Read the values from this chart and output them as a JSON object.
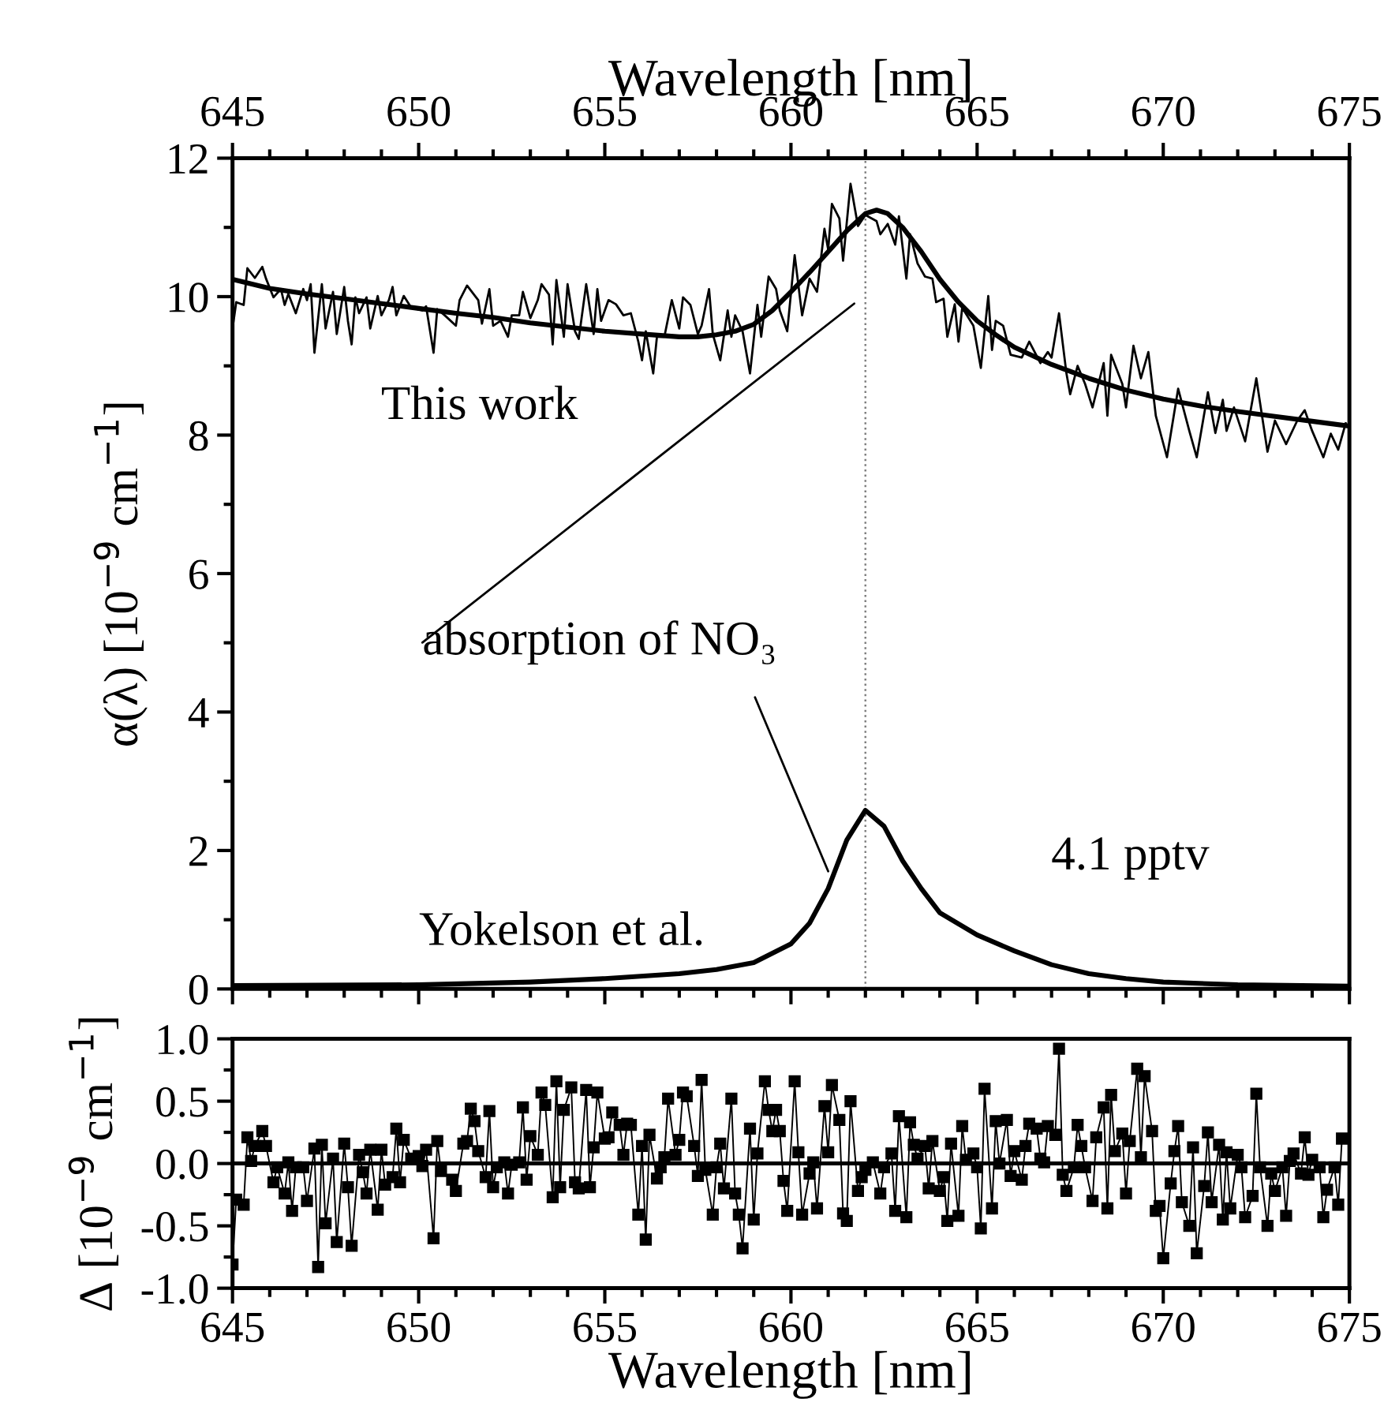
{
  "chart_data": [
    {
      "type": "line",
      "ylabel": "α(λ) [10$^{−9}$ cm$^{−1}$]",
      "xlabel": "Wavelength [nm]",
      "xlim": [
        645,
        675
      ],
      "xticks": [
        645,
        650,
        655,
        660,
        665,
        670,
        675
      ],
      "ylim": [
        0,
        12
      ],
      "yticks": [
        0,
        2,
        4,
        6,
        8,
        10,
        12
      ],
      "grid": false,
      "legend": false,
      "ref_lines": [
        {
          "axis": "x",
          "value": 662.0,
          "line_style": "dotted",
          "color": "#808080"
        }
      ],
      "annotations": [
        "This work",
        {
          "text": "absorption of NO₃",
          "x": 661.0,
          "y": 1.7
        },
        "Yokelson et al.",
        "4.1 pptv"
      ],
      "series": [
        {
          "color": "#000000",
          "x": [
            645.0,
            645.1,
            645.3,
            645.4,
            645.6,
            645.8,
            645.9,
            646.1,
            646.3,
            646.4,
            646.5,
            646.7,
            646.9,
            647.0,
            647.1,
            647.2,
            647.4,
            647.5,
            647.7,
            647.8,
            648.0,
            648.1,
            648.2,
            648.3,
            648.4,
            648.6,
            648.7,
            648.9,
            649.0,
            649.2,
            649.3,
            649.4,
            649.6,
            649.8,
            650.1,
            650.2,
            650.4,
            650.5,
            650.7,
            651.0,
            651.1,
            651.3,
            651.6,
            651.7,
            651.9,
            652.0,
            652.2,
            652.4,
            652.5,
            652.7,
            652.8,
            653.0,
            653.2,
            653.3,
            653.5,
            653.6,
            653.7,
            653.9,
            654.0,
            654.2,
            654.3,
            654.5,
            654.7,
            654.8,
            654.9,
            655.1,
            655.3,
            655.5,
            655.7,
            655.9,
            656.0,
            656.1,
            656.3,
            656.4,
            656.6,
            656.8,
            657.0,
            657.1,
            657.3,
            657.5,
            657.6,
            657.8,
            657.9,
            658.1,
            658.3,
            658.4,
            658.5,
            658.7,
            658.9,
            659.1,
            659.2,
            659.4,
            659.6,
            659.7,
            659.9,
            660.1,
            660.3,
            660.5,
            660.7,
            660.9,
            661.0,
            661.1,
            661.3,
            661.4,
            661.6,
            661.8,
            662.0,
            662.3,
            662.4,
            662.6,
            662.8,
            662.9,
            663.1,
            663.2,
            663.4,
            663.6,
            663.8,
            663.9,
            664.1,
            664.2,
            664.4,
            664.5,
            664.6,
            664.9,
            665.1,
            665.3,
            665.4,
            665.5,
            665.7,
            665.9,
            666.2,
            666.4,
            666.7,
            666.9,
            667.0,
            667.2,
            667.4,
            667.5,
            667.7,
            667.9,
            668.1,
            668.4,
            668.5,
            668.6,
            668.9,
            669.0,
            669.2,
            669.4,
            669.6,
            669.8,
            670.1,
            670.4,
            670.7,
            670.9,
            671.2,
            671.4,
            671.6,
            671.7,
            671.9,
            672.2,
            672.5,
            672.8,
            673.0,
            673.3,
            673.6,
            673.8,
            674.0,
            674.3,
            674.5,
            674.7,
            674.9
          ],
          "values": [
            9.54,
            9.92,
            9.88,
            10.41,
            10.27,
            10.43,
            10.26,
            9.99,
            10.11,
            9.88,
            10.04,
            9.76,
            10.11,
            9.95,
            10.18,
            9.19,
            10.18,
            9.54,
            10.07,
            9.46,
            10.14,
            9.65,
            9.31,
            9.99,
            9.76,
            9.99,
            9.54,
            10.01,
            9.73,
            9.95,
            10.14,
            9.73,
            10.01,
            9.84,
            9.8,
            9.86,
            9.19,
            9.82,
            9.73,
            9.58,
            9.95,
            10.16,
            9.95,
            9.61,
            10.11,
            9.58,
            9.65,
            9.42,
            9.73,
            9.73,
            10.07,
            9.69,
            9.95,
            10.18,
            10.03,
            9.31,
            10.24,
            9.42,
            10.18,
            9.5,
            9.39,
            10.18,
            9.46,
            10.11,
            9.65,
            9.95,
            9.89,
            9.73,
            9.76,
            9.35,
            9.08,
            9.5,
            8.89,
            9.42,
            9.42,
            9.95,
            9.54,
            9.99,
            9.88,
            9.46,
            9.58,
            10.11,
            9.46,
            9.08,
            9.8,
            9.42,
            9.73,
            9.5,
            8.89,
            9.88,
            9.42,
            10.29,
            10.11,
            9.8,
            9.5,
            10.6,
            9.73,
            10.26,
            10.07,
            10.98,
            10.68,
            11.34,
            11.13,
            10.52,
            11.63,
            11.02,
            11.18,
            11.09,
            10.9,
            11.05,
            10.75,
            11.16,
            10.26,
            10.9,
            10.48,
            10.29,
            10.26,
            9.92,
            9.97,
            9.42,
            9.89,
            9.35,
            9.84,
            9.58,
            8.97,
            10.01,
            9.23,
            9.65,
            9.58,
            9.16,
            9.12,
            9.35,
            9.04,
            9.2,
            9.12,
            9.76,
            8.89,
            8.59,
            9.0,
            8.74,
            8.4,
            9.04,
            8.28,
            9.16,
            8.74,
            8.4,
            9.29,
            8.82,
            9.2,
            8.28,
            7.68,
            8.67,
            8.06,
            7.68,
            8.62,
            8.03,
            8.51,
            8.06,
            8.4,
            7.91,
            8.82,
            7.76,
            8.21,
            7.87,
            8.21,
            8.36,
            8.06,
            7.68,
            8.02,
            7.79,
            8.17
          ]
        },
        {
          "color": "#000000",
          "x": [
            645,
            646,
            647,
            648,
            649,
            650,
            651,
            652,
            653,
            654,
            655,
            656,
            657,
            657.5,
            658,
            658.5,
            659,
            659.5,
            660,
            660.5,
            661,
            661.5,
            662,
            662.3,
            662.6,
            663,
            663.5,
            664,
            664.5,
            665,
            665.5,
            666,
            667,
            668,
            669,
            670,
            671,
            672,
            673,
            674,
            675
          ],
          "values": [
            10.25,
            10.12,
            10.04,
            9.97,
            9.9,
            9.83,
            9.76,
            9.7,
            9.62,
            9.56,
            9.5,
            9.46,
            9.42,
            9.42,
            9.45,
            9.5,
            9.6,
            9.8,
            10.07,
            10.35,
            10.65,
            10.95,
            11.2,
            11.25,
            11.2,
            11.0,
            10.65,
            10.25,
            9.92,
            9.65,
            9.45,
            9.27,
            9.02,
            8.82,
            8.65,
            8.52,
            8.42,
            8.34,
            8.27,
            8.2,
            8.13
          ]
        },
        {
          "color": "#000000",
          "x": [
            645,
            650,
            653,
            655,
            657,
            658,
            659,
            660,
            660.5,
            661,
            661.5,
            662,
            662.5,
            663,
            663.5,
            664,
            665,
            666,
            667,
            668,
            669,
            670,
            672,
            675
          ],
          "values": [
            0.05,
            0.06,
            0.1,
            0.15,
            0.22,
            0.28,
            0.38,
            0.65,
            0.95,
            1.45,
            2.15,
            2.58,
            2.35,
            1.85,
            1.45,
            1.1,
            0.78,
            0.55,
            0.35,
            0.22,
            0.15,
            0.1,
            0.06,
            0.04
          ]
        }
      ]
    },
    {
      "type": "line",
      "ylabel": "Δ [10$^{−9}$ cm$^{−1}$]",
      "xlabel": "Wavelength [nm]",
      "xlim": [
        645,
        675
      ],
      "xticks": [
        645,
        650,
        655,
        660,
        665,
        670,
        675
      ],
      "ylim": [
        -1.0,
        1.0
      ],
      "yticks": [
        {
          "value": -1.0,
          "label": "-1.0"
        },
        {
          "value": -0.5,
          "label": "-0.5"
        },
        {
          "value": 0.0,
          "label": "0.0"
        },
        {
          "value": 0.5,
          "label": "0.5"
        },
        {
          "value": 1.0,
          "label": "1.0"
        }
      ],
      "grid": false,
      "legend": false,
      "marker": "square",
      "ref_lines": [
        {
          "axis": "y",
          "value": 0,
          "line_style": "solid",
          "color": "#000000"
        }
      ],
      "series": [
        {
          "color": "#000000",
          "x": [
            645.0,
            645.1,
            645.3,
            645.4,
            645.5,
            645.6,
            645.8,
            645.9,
            646.1,
            646.2,
            646.4,
            646.5,
            646.6,
            646.7,
            646.9,
            647.0,
            647.2,
            647.3,
            647.4,
            647.5,
            647.7,
            647.8,
            648.0,
            648.1,
            648.2,
            648.4,
            648.5,
            648.6,
            648.7,
            648.9,
            649.0,
            649.1,
            649.3,
            649.4,
            649.5,
            649.6,
            649.8,
            650.0,
            650.1,
            650.2,
            650.4,
            650.5,
            650.6,
            650.9,
            651.0,
            651.2,
            651.3,
            651.4,
            651.5,
            651.6,
            651.8,
            651.9,
            652.0,
            652.1,
            652.3,
            652.4,
            652.5,
            652.7,
            652.8,
            652.9,
            653.0,
            653.2,
            653.3,
            653.4,
            653.6,
            653.7,
            653.8,
            653.9,
            654.1,
            654.2,
            654.3,
            654.5,
            654.6,
            654.7,
            654.8,
            655.0,
            655.1,
            655.2,
            655.4,
            655.5,
            655.6,
            655.7,
            655.9,
            656.0,
            656.1,
            656.2,
            656.4,
            656.5,
            656.6,
            656.7,
            656.9,
            657.0,
            657.1,
            657.2,
            657.4,
            657.5,
            657.6,
            657.7,
            657.9,
            658.0,
            658.1,
            658.2,
            658.4,
            658.5,
            658.6,
            658.7,
            658.9,
            659.0,
            659.1,
            659.3,
            659.4,
            659.5,
            659.6,
            659.7,
            659.8,
            659.9,
            660.1,
            660.2,
            660.3,
            660.5,
            660.6,
            660.7,
            660.9,
            661.0,
            661.1,
            661.3,
            661.4,
            661.5,
            661.6,
            661.8,
            661.9,
            662.0,
            662.2,
            662.4,
            662.5,
            662.7,
            662.8,
            662.9,
            663.1,
            663.2,
            663.3,
            663.4,
            663.6,
            663.7,
            663.8,
            664.0,
            664.1,
            664.2,
            664.3,
            664.5,
            664.6,
            664.7,
            664.9,
            665.0,
            665.1,
            665.2,
            665.4,
            665.5,
            665.6,
            665.8,
            665.9,
            666.0,
            666.2,
            666.3,
            666.4,
            666.6,
            666.7,
            666.8,
            666.9,
            667.1,
            667.2,
            667.3,
            667.4,
            667.6,
            667.7,
            667.8,
            667.9,
            668.1,
            668.2,
            668.4,
            668.5,
            668.6,
            668.7,
            668.9,
            669.0,
            669.1,
            669.3,
            669.4,
            669.5,
            669.7,
            669.8,
            669.9,
            670.0,
            670.2,
            670.3,
            670.4,
            670.5,
            670.7,
            670.8,
            670.9,
            671.1,
            671.2,
            671.3,
            671.5,
            671.6,
            671.7,
            671.8,
            672.0,
            672.1,
            672.2,
            672.4,
            672.5,
            672.6,
            672.8,
            672.9,
            673.0,
            673.2,
            673.3,
            673.4,
            673.5,
            673.7,
            673.8,
            673.9,
            674.0,
            674.2,
            674.3,
            674.4,
            674.6,
            674.7,
            674.8
          ],
          "values": [
            -0.81,
            -0.29,
            -0.33,
            0.21,
            0.02,
            0.14,
            0.26,
            0.14,
            -0.15,
            -0.03,
            -0.24,
            0.01,
            -0.38,
            -0.03,
            -0.03,
            -0.3,
            0.12,
            -0.83,
            0.15,
            -0.48,
            0.04,
            -0.63,
            0.16,
            -0.19,
            -0.66,
            0.07,
            -0.07,
            -0.24,
            0.11,
            -0.37,
            0.11,
            -0.17,
            -0.11,
            0.28,
            -0.15,
            0.19,
            0.04,
            0.06,
            -0.02,
            0.11,
            -0.6,
            0.18,
            -0.06,
            -0.13,
            -0.22,
            0.16,
            0.18,
            0.44,
            0.34,
            0.1,
            -0.11,
            0.42,
            -0.19,
            -0.03,
            0.01,
            -0.24,
            -0.01,
            0.01,
            0.45,
            -0.13,
            0.22,
            0.07,
            0.57,
            0.47,
            -0.27,
            0.66,
            -0.19,
            0.43,
            0.61,
            -0.15,
            -0.2,
            0.59,
            -0.19,
            0.13,
            0.57,
            0.2,
            0.21,
            0.41,
            0.31,
            0.07,
            0.32,
            0.31,
            -0.41,
            0.14,
            -0.61,
            0.23,
            -0.12,
            -0.03,
            0.05,
            0.52,
            0.07,
            0.19,
            0.57,
            0.54,
            0.14,
            -0.1,
            0.67,
            -0.05,
            -0.41,
            -0.03,
            0.16,
            -0.2,
            0.52,
            -0.24,
            -0.41,
            -0.68,
            0.28,
            -0.45,
            0.08,
            0.66,
            0.43,
            0.26,
            0.43,
            0.26,
            -0.14,
            -0.38,
            0.66,
            0.09,
            -0.41,
            -0.08,
            0.01,
            -0.36,
            0.46,
            0.09,
            0.63,
            0.35,
            -0.4,
            -0.46,
            0.5,
            -0.22,
            -0.11,
            -0.05,
            0.01,
            -0.24,
            -0.03,
            0.08,
            -0.38,
            0.38,
            -0.43,
            0.33,
            0.15,
            0.04,
            0.14,
            -0.2,
            0.18,
            -0.22,
            -0.11,
            -0.46,
            0.16,
            -0.42,
            0.3,
            0.03,
            0.08,
            -0.03,
            -0.52,
            0.6,
            -0.36,
            0.34,
            0.0,
            0.35,
            -0.1,
            0.1,
            -0.13,
            0.14,
            0.32,
            0.28,
            0.04,
            0.01,
            0.3,
            0.23,
            0.92,
            -0.09,
            -0.22,
            -0.03,
            0.31,
            0.14,
            -0.03,
            -0.3,
            0.21,
            0.45,
            -0.36,
            0.55,
            0.1,
            0.24,
            -0.24,
            0.18,
            0.76,
            0.05,
            0.7,
            0.26,
            -0.38,
            -0.34,
            -0.76,
            -0.16,
            0.1,
            0.3,
            -0.31,
            -0.5,
            0.13,
            -0.72,
            -0.18,
            0.25,
            -0.31,
            0.15,
            -0.45,
            0.09,
            -0.36,
            0.07,
            -0.03,
            -0.43,
            -0.26,
            0.56,
            -0.03,
            -0.5,
            -0.08,
            -0.22,
            -0.03,
            -0.42,
            0.02,
            0.08,
            -0.08,
            0.21,
            -0.09,
            0.03,
            -0.03,
            -0.43,
            -0.21,
            -0.03,
            -0.33,
            0.2
          ]
        }
      ]
    }
  ]
}
